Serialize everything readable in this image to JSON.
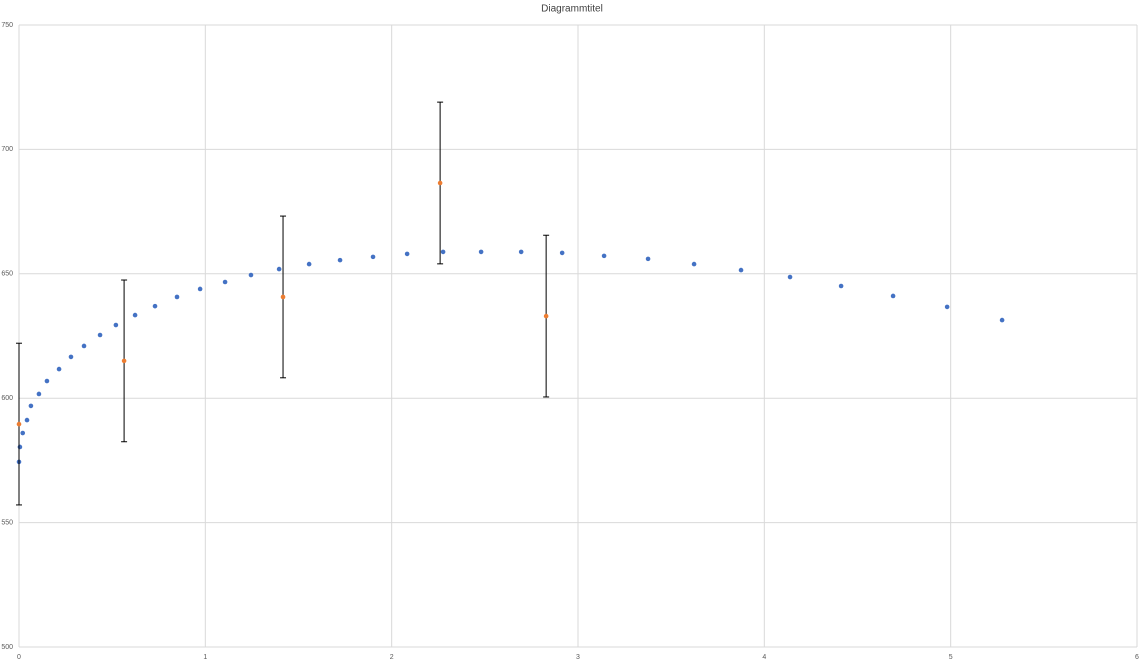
{
  "chart_data": {
    "type": "scatter",
    "title": "Diagrammtitel",
    "xlim": [
      0,
      6
    ],
    "xticks": [
      0,
      1,
      2,
      3,
      4,
      5,
      6
    ],
    "ylim": [
      500,
      750
    ],
    "yticks": [
      500,
      550,
      600,
      650,
      700,
      750
    ],
    "grid": true,
    "series": [
      {
        "color": "#4472c4",
        "x": [
          0,
          0.005,
          0.02,
          0.043,
          0.064,
          0.107,
          0.15,
          0.215,
          0.279,
          0.349,
          0.435,
          0.52,
          0.623,
          0.73,
          0.848,
          0.972,
          1.106,
          1.245,
          1.396,
          1.557,
          1.723,
          1.9,
          2.083,
          2.276,
          2.48,
          2.695,
          2.915,
          3.14,
          3.376,
          3.623,
          3.875,
          4.138,
          4.412,
          4.691,
          4.981,
          5.276
        ],
        "values": [
          574.4,
          580.4,
          586,
          591.2,
          596.9,
          601.7,
          606.9,
          611.7,
          616.6,
          621,
          625.4,
          629.4,
          633.4,
          637,
          640.7,
          643.9,
          646.7,
          649.5,
          651.9,
          653.9,
          655.5,
          656.8,
          658,
          658.8,
          658.8,
          658.8,
          658.4,
          657.2,
          656,
          653.9,
          651.5,
          648.7,
          645.1,
          641.1,
          636.7,
          631.4
        ]
      },
      {
        "color": "#ed7d31",
        "x": [
          0,
          0.564,
          1.417,
          2.26,
          2.829
        ],
        "values": [
          589.6,
          615,
          640.7,
          686.5,
          633
        ],
        "errors": [
          32.5,
          32.5,
          32.5,
          32.5,
          32.5
        ]
      }
    ]
  }
}
